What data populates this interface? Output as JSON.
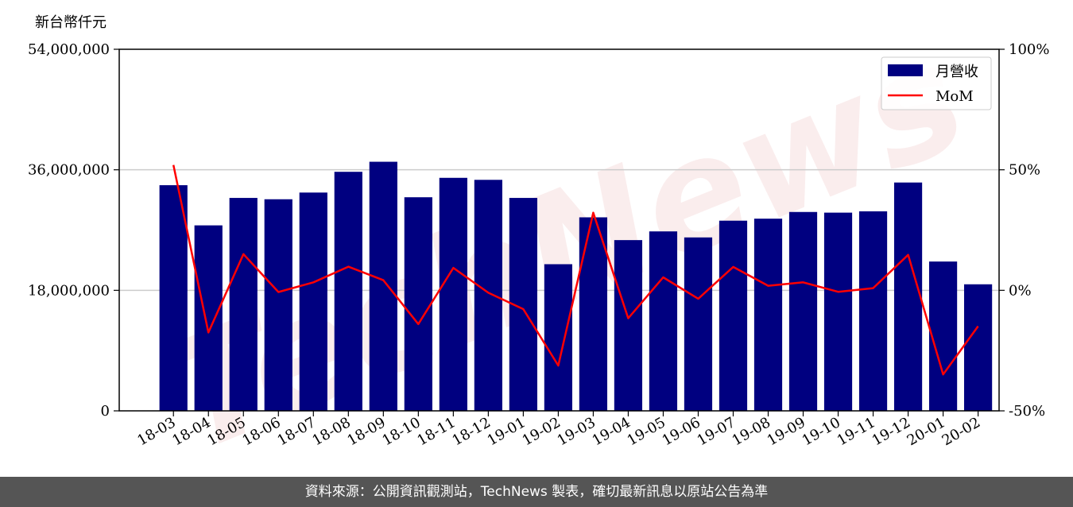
{
  "y_unit_label": "新台幣仟元",
  "footer_text": "資料來源：公開資訊觀測站，TechNews 製表，確切最新訊息以原站公告為準",
  "watermark_text": "TechNews",
  "colors": {
    "bar": "#000080",
    "line": "#ff0000",
    "grid": "#cccccc",
    "footer_bg": "#555555"
  },
  "chart_data": {
    "type": "bar",
    "categories": [
      "18-03",
      "18-04",
      "18-05",
      "18-06",
      "18-07",
      "18-08",
      "18-09",
      "18-10",
      "18-11",
      "18-12",
      "19-01",
      "19-02",
      "19-03",
      "19-04",
      "19-05",
      "19-06",
      "19-07",
      "19-08",
      "19-09",
      "19-10",
      "19-11",
      "19-12",
      "20-01",
      "20-02"
    ],
    "series": [
      {
        "name": "月營收",
        "type": "bar",
        "axis": "left",
        "values": [
          33700000,
          27700000,
          31800000,
          31600000,
          32600000,
          35700000,
          37200000,
          31900000,
          34800000,
          34500000,
          31800000,
          21900000,
          28900000,
          25500000,
          26800000,
          25900000,
          28400000,
          28700000,
          29700000,
          29600000,
          29800000,
          34100000,
          22300000,
          18900000
        ]
      },
      {
        "name": "MoM",
        "type": "line",
        "axis": "right",
        "values": [
          52,
          -17.5,
          15,
          -0.7,
          3.3,
          9.8,
          4.2,
          -14,
          9.3,
          -1,
          -7.8,
          -31.2,
          32.2,
          -11.6,
          5.4,
          -3.5,
          9.7,
          1.9,
          3.3,
          -0.6,
          0.9,
          14.7,
          -34.9,
          -14.9
        ]
      }
    ],
    "y_left": {
      "lim": [
        0,
        54000000
      ],
      "ticks": [
        "0",
        "18,000,000",
        "36,000,000",
        "54,000,000"
      ],
      "tick_values": [
        0,
        18000000,
        36000000,
        54000000
      ]
    },
    "y_right": {
      "lim": [
        -50,
        100
      ],
      "ticks": [
        "-50%",
        "0%",
        "50%",
        "100%"
      ],
      "tick_values": [
        -50,
        0,
        50,
        100
      ]
    },
    "legend": {
      "placement": "top-right",
      "entries": [
        "月營收",
        "MoM"
      ]
    },
    "grid": "horizontal"
  }
}
